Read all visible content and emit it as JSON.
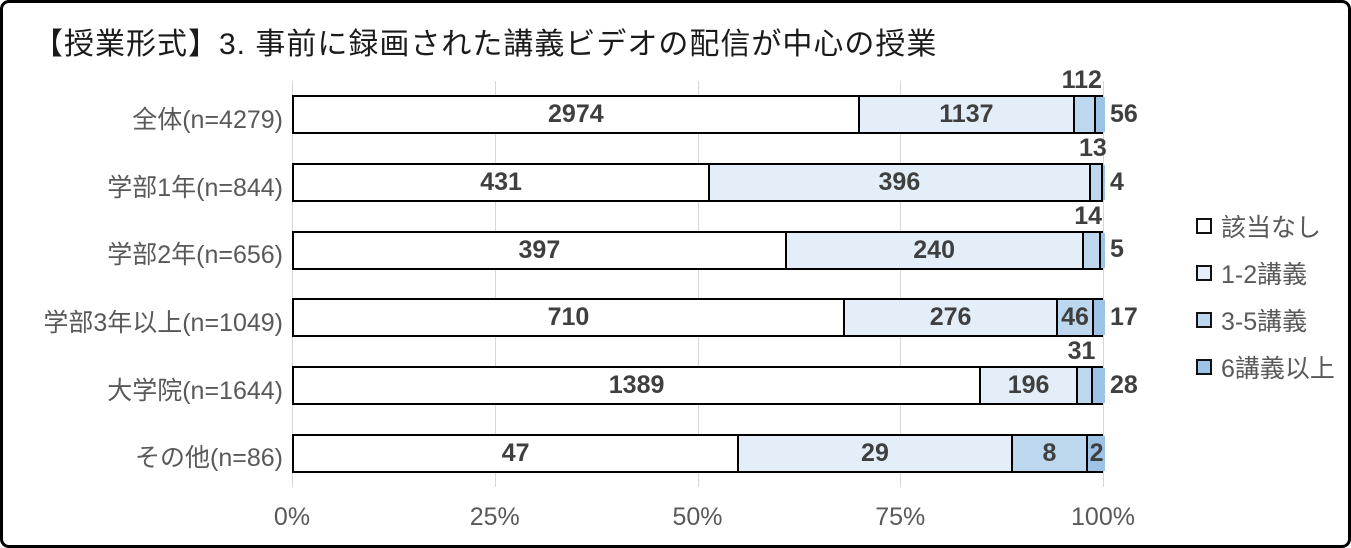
{
  "title": "【授業形式】3. 事前に録画された講義ビデオの配信が中心の授業",
  "chart_data": {
    "type": "bar",
    "orientation": "horizontal",
    "stacked": true,
    "normalized": "100% stacked, segment widths are value/n per category",
    "title": "【授業形式】3. 事前に録画された講義ビデオの配信が中心の授業",
    "categories": [
      "全体(n=4279)",
      "学部1年(n=844)",
      "学部2年(n=656)",
      "学部3年以上(n=1049)",
      "大学院(n=1644)",
      "その他(n=86)"
    ],
    "series": [
      {
        "name": "該当なし",
        "color": "#ffffff",
        "values": [
          2974,
          431,
          397,
          710,
          1389,
          47
        ]
      },
      {
        "name": "1-2講義",
        "color": "#e3eef8",
        "values": [
          1137,
          396,
          240,
          276,
          196,
          29
        ]
      },
      {
        "name": "3-5講義",
        "color": "#bdd7ee",
        "values": [
          112,
          13,
          14,
          46,
          31,
          8
        ]
      },
      {
        "name": "6講義以上",
        "color": "#9dc3e6",
        "values": [
          56,
          4,
          5,
          17,
          28,
          2
        ]
      }
    ],
    "x_ticks": [
      "0%",
      "25%",
      "50%",
      "75%",
      "100%"
    ],
    "xlim": [
      0,
      100
    ],
    "grid": true,
    "legend_position": "right",
    "colors": {
      "grid": "#d6d6d6",
      "bar_border": "#000000",
      "value_label": "#3f3f3f",
      "axis_label": "#595959",
      "category_label": "#595959",
      "title_text": "#1a1a1a"
    }
  }
}
